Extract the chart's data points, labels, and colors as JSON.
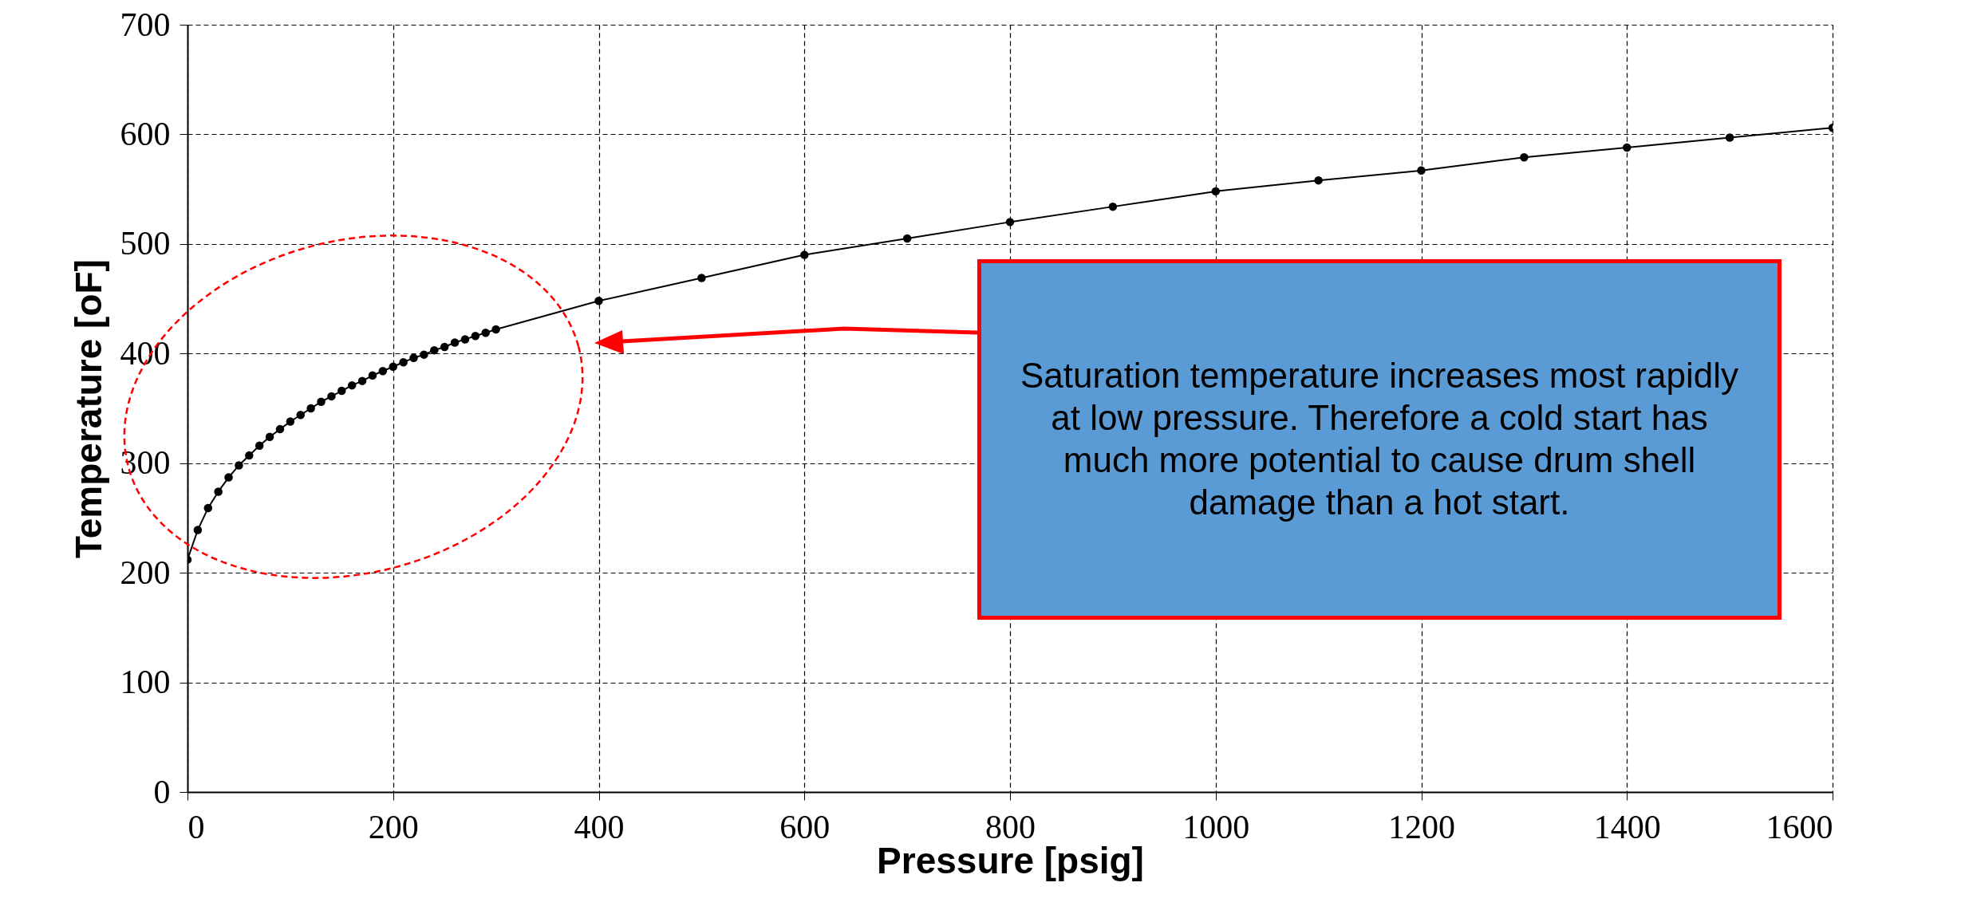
{
  "chart_data": {
    "type": "line",
    "xlabel": "Pressure [psig]",
    "ylabel": "Temperature [oF]",
    "x": [
      0,
      10,
      20,
      30,
      40,
      50,
      60,
      70,
      80,
      90,
      100,
      110,
      120,
      130,
      140,
      150,
      160,
      170,
      180,
      190,
      200,
      210,
      220,
      230,
      240,
      250,
      260,
      270,
      280,
      290,
      300,
      400,
      500,
      600,
      700,
      800,
      900,
      1000,
      1100,
      1200,
      1300,
      1400,
      1500,
      1600
    ],
    "series": [
      {
        "color": "#000000",
        "values": [
          212,
          239,
          259,
          274,
          287,
          298,
          307,
          316,
          324,
          331,
          338,
          344,
          350,
          356,
          361,
          366,
          371,
          375,
          380,
          384,
          388,
          392,
          396,
          399,
          403,
          406,
          410,
          413,
          416,
          419,
          422,
          448,
          469,
          490,
          505,
          520,
          534,
          548,
          558,
          567,
          579,
          588,
          597,
          606
        ]
      }
    ],
    "xlim": [
      0,
      1600
    ],
    "xticks": [
      0,
      200,
      400,
      600,
      800,
      1000,
      1200,
      1400,
      1600
    ],
    "ylim": [
      0,
      700
    ],
    "yticks": [
      0,
      100,
      200,
      300,
      400,
      500,
      600,
      700
    ],
    "grid": true,
    "marker": "circle",
    "line_style": "solid",
    "annotations": [
      "Saturation temperature increases most rapidly at low pressure.  Therefore a cold start has much more potential to cause drum shell damage than a hot start."
    ]
  }
}
